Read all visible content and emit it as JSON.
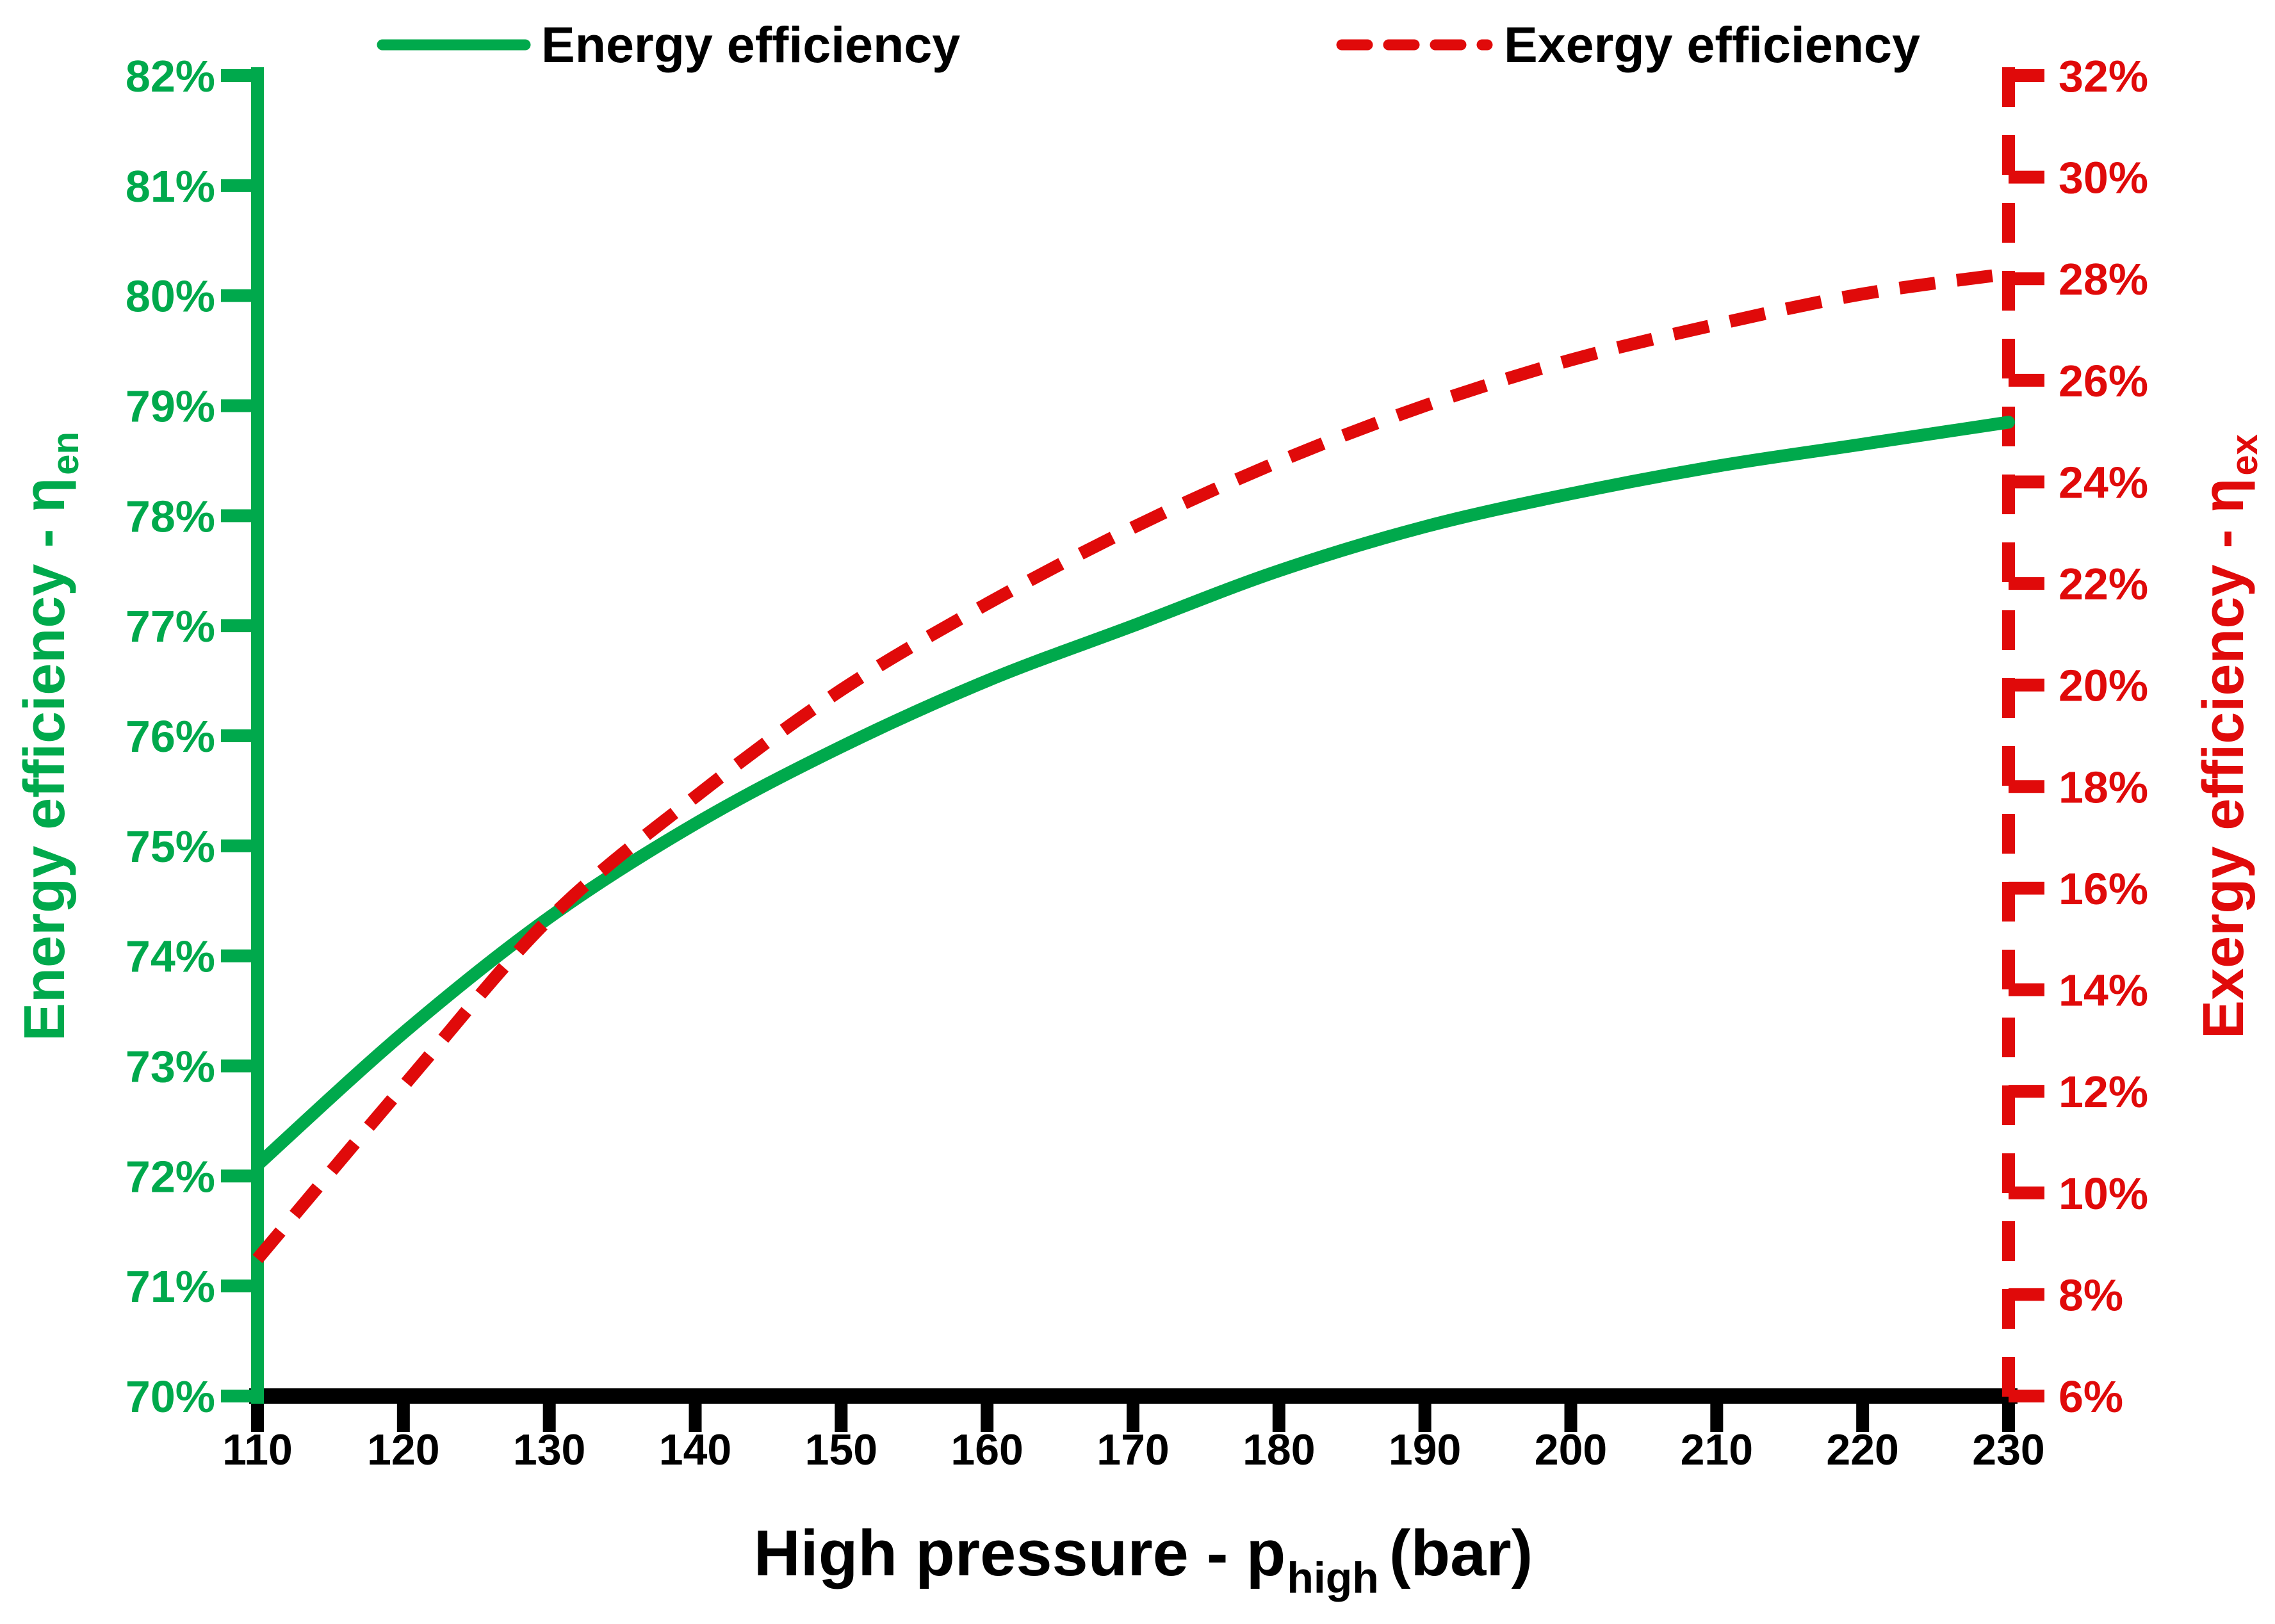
{
  "figure": {
    "background": "#ffffff",
    "text_color": "#000000"
  },
  "legend": {
    "items": [
      {
        "label": "Energy efficiency",
        "color": "#00A94C",
        "style": "solid"
      },
      {
        "label": "Exergy efficiency",
        "color": "#E00A0A",
        "style": "dashed"
      }
    ]
  },
  "chart_data": {
    "type": "line",
    "title": "",
    "grid": false,
    "legend_position": "top",
    "x": [
      110,
      120,
      130,
      140,
      150,
      160,
      170,
      180,
      190,
      200,
      210,
      220,
      230
    ],
    "x_tick_labels": [
      "110",
      "120",
      "130",
      "140",
      "150",
      "160",
      "170",
      "180",
      "190",
      "200",
      "210",
      "220",
      "230"
    ],
    "x_axis": {
      "title_main": "High pressure - p",
      "title_sub": "high",
      "title_suffix": "(bar)",
      "min": 110,
      "max": 230,
      "tick_step": 10,
      "color": "#000000"
    },
    "left_axis": {
      "title_main": "Energy efficiency - η",
      "title_sub": "en",
      "min": 70,
      "max": 82,
      "tick_step": 1,
      "tick_labels": [
        "70%",
        "71%",
        "72%",
        "73%",
        "74%",
        "75%",
        "76%",
        "77%",
        "78%",
        "79%",
        "80%",
        "81%",
        "82%"
      ],
      "color": "#00A94C"
    },
    "right_axis": {
      "title_main": "Exergy efficiency - η",
      "title_sub": "ex",
      "min": 6,
      "max": 32,
      "tick_step": 2,
      "tick_labels": [
        "6%",
        "8%",
        "10%",
        "12%",
        "14%",
        "16%",
        "18%",
        "20%",
        "22%",
        "24%",
        "26%",
        "28%",
        "30%",
        "32%"
      ],
      "color": "#E00A0A"
    },
    "series": [
      {
        "name": "Energy efficiency",
        "axis": "left",
        "color": "#00A94C",
        "line_style": "solid",
        "values": [
          72.1,
          73.3,
          74.35,
          75.2,
          75.9,
          76.5,
          77.0,
          77.5,
          77.9,
          78.2,
          78.45,
          78.65,
          78.85
        ]
      },
      {
        "name": "Exergy efficiency",
        "axis": "right",
        "color": "#E00A0A",
        "line_style": "dashed",
        "values": [
          8.7,
          12.1,
          15.4,
          17.8,
          19.9,
          21.6,
          23.1,
          24.4,
          25.5,
          26.4,
          27.1,
          27.7,
          28.1
        ]
      }
    ]
  }
}
